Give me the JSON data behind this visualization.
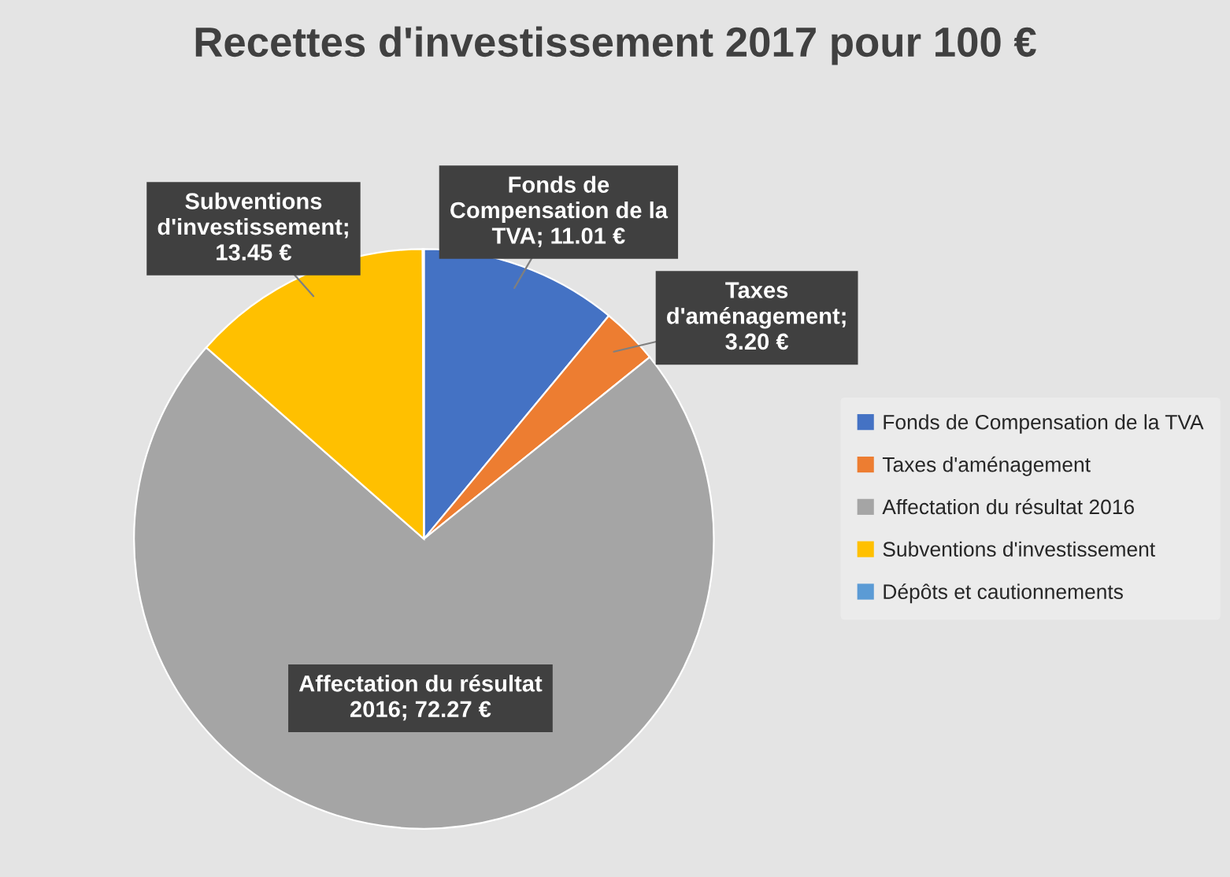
{
  "chart_data": {
    "type": "pie",
    "title": "Recettes d'investissement 2017 pour 100 €",
    "categories": [
      "Fonds de Compensation de la TVA",
      "Taxes d'aménagement",
      "Affectation du résultat 2016",
      "Subventions d'investissement",
      "Dépôts et cautionnements"
    ],
    "values": [
      11.01,
      3.2,
      72.27,
      13.45,
      0.07
    ],
    "colors": [
      "#4472c4",
      "#ed7d31",
      "#a5a5a5",
      "#ffc000",
      "#5b9bd5"
    ],
    "value_labels": [
      "Fonds de Compensation de la TVA; 11.01 €",
      "Taxes d'aménagement; 3.20 €",
      "Affectation du résultat 2016; 72.27 €",
      "Subventions d'investissement; 13.45 €",
      null
    ],
    "legend": "right"
  }
}
